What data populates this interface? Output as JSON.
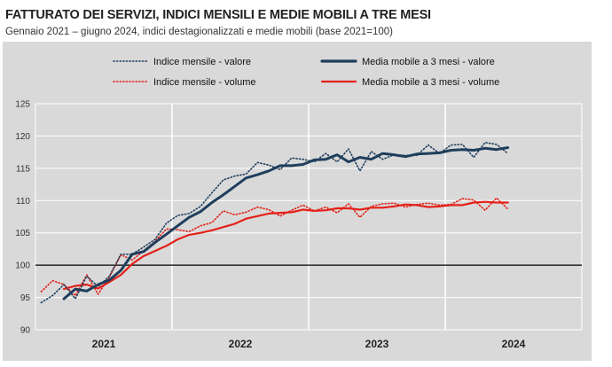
{
  "title": "FATTURATO DEI SERVIZI, INDICI MENSILI E MEDIE MOBILI A TRE MESI",
  "subtitle": "Gennaio 2021 – giugno 2024, indici destagionalizzati e medie mobili (base 2021=100)",
  "colors": {
    "valore": "#1f3e5c",
    "volume": "#e32119",
    "background": "#d9d9d9",
    "grid": "#ffffff",
    "baseline": "#000000"
  },
  "chart_data": {
    "type": "line",
    "title": "FATTURATO DEI SERVIZI, INDICI MENSILI E MEDIE MOBILI A TRE MESI",
    "subtitle": "Gennaio 2021 – giugno 2024, indici destagionalizzati e medie mobili (base 2021=100)",
    "ylim": [
      90,
      125
    ],
    "yticks": [
      90,
      95,
      100,
      105,
      110,
      115,
      120,
      125
    ],
    "reference_line": 100,
    "year_labels": [
      "2021",
      "2022",
      "2023",
      "2024"
    ],
    "x": [
      "2021-01",
      "2021-02",
      "2021-03",
      "2021-04",
      "2021-05",
      "2021-06",
      "2021-07",
      "2021-08",
      "2021-09",
      "2021-10",
      "2021-11",
      "2021-12",
      "2022-01",
      "2022-02",
      "2022-03",
      "2022-04",
      "2022-05",
      "2022-06",
      "2022-07",
      "2022-08",
      "2022-09",
      "2022-10",
      "2022-11",
      "2022-12",
      "2023-01",
      "2023-02",
      "2023-03",
      "2023-04",
      "2023-05",
      "2023-06",
      "2023-07",
      "2023-08",
      "2023-09",
      "2023-10",
      "2023-11",
      "2023-12",
      "2024-01",
      "2024-02",
      "2024-03",
      "2024-04",
      "2024-05",
      "2024-06"
    ],
    "legend_position": "top",
    "series": [
      {
        "name": "Indice mensile - valore",
        "style": "dotted",
        "color": "#1f3e5c",
        "values": [
          94.2,
          95.3,
          97.0,
          94.8,
          98.3,
          96.7,
          98.3,
          101.7,
          101.7,
          102.8,
          104.0,
          106.5,
          107.7,
          108.0,
          109.1,
          111.2,
          113.2,
          113.8,
          114.1,
          115.9,
          115.5,
          114.8,
          116.6,
          116.4,
          116.0,
          117.3,
          116.0,
          118.0,
          114.6,
          117.6,
          116.4,
          117.1,
          117.0,
          117.0,
          118.6,
          117.3,
          118.6,
          118.7,
          116.7,
          119.0,
          118.7,
          117.3
        ]
      },
      {
        "name": "Indice mensile - volume",
        "style": "dotted",
        "color": "#e32119",
        "values": [
          95.9,
          97.6,
          97.0,
          95.3,
          98.5,
          95.5,
          98.2,
          101.6,
          100.8,
          102.2,
          103.7,
          105.6,
          105.5,
          105.2,
          106.1,
          106.6,
          108.4,
          107.8,
          108.2,
          109.0,
          108.6,
          107.6,
          108.5,
          109.3,
          108.4,
          109.0,
          108.1,
          109.5,
          107.4,
          109.1,
          109.5,
          109.6,
          109.0,
          109.4,
          109.6,
          109.3,
          109.4,
          110.3,
          110.1,
          108.5,
          110.4,
          108.7
        ]
      },
      {
        "name": "Media mobile a 3 mesi - valore",
        "style": "solid",
        "color": "#1f3e5c",
        "values": [
          null,
          null,
          94.8,
          96.3,
          96.0,
          97.0,
          97.7,
          99.2,
          101.7,
          102.1,
          103.5,
          104.8,
          106.1,
          107.4,
          108.3,
          109.7,
          110.9,
          112.2,
          113.5,
          114.0,
          114.6,
          115.4,
          115.4,
          115.6,
          116.3,
          116.4,
          117.1,
          116.0,
          116.7,
          116.4,
          117.3,
          117.1,
          116.8,
          117.2,
          117.3,
          117.4,
          117.8,
          117.9,
          117.8,
          118.1,
          117.9,
          118.2
        ]
      },
      {
        "name": "Media mobile a 3 mesi - volume",
        "style": "solid",
        "color": "#e32119",
        "values": [
          null,
          null,
          96.3,
          96.8,
          97.0,
          96.4,
          97.4,
          98.5,
          100.2,
          101.4,
          102.2,
          103.0,
          104.0,
          104.7,
          105.0,
          105.4,
          105.9,
          106.4,
          107.2,
          107.6,
          108.0,
          108.1,
          108.2,
          108.6,
          108.4,
          108.5,
          108.8,
          108.8,
          108.6,
          108.9,
          108.9,
          109.1,
          109.4,
          109.3,
          109.0,
          109.1,
          109.3,
          109.3,
          109.7,
          109.8,
          109.7,
          109.7
        ]
      }
    ]
  }
}
